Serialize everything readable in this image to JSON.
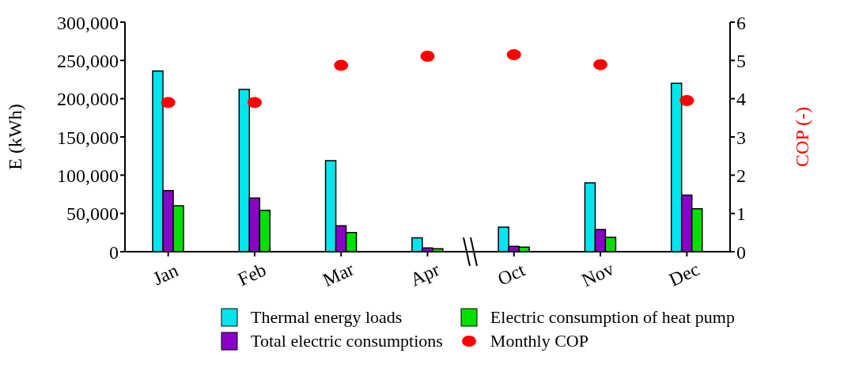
{
  "chart_data": {
    "type": "bar",
    "categories": [
      "Jan",
      "Feb",
      "Mar",
      "Apr",
      "Oct",
      "Nov",
      "Dec"
    ],
    "series": [
      {
        "name": "Thermal energy loads",
        "color": "#00e5ee",
        "values": [
          236000,
          212000,
          119000,
          18000,
          32000,
          90000,
          220000
        ]
      },
      {
        "name": "Total electric consumptions",
        "color": "#8a00c8",
        "values": [
          80000,
          70000,
          34000,
          5000,
          7000,
          29000,
          74000
        ]
      },
      {
        "name": "Electric consumption of heat pump",
        "color": "#00e000",
        "values": [
          60000,
          54000,
          25000,
          4000,
          6000,
          19000,
          56000
        ]
      },
      {
        "name": "Monthly COP",
        "type": "scatter",
        "axis": "y2",
        "color": "#ff0000",
        "marker": "circle",
        "values": [
          3.9,
          3.9,
          4.87,
          5.11,
          5.15,
          4.89,
          3.95
        ]
      }
    ],
    "ylabel": "E (kWh)",
    "y2label": "COP (-)",
    "ylim": [
      0,
      300000
    ],
    "yticks": [
      {
        "value": 0,
        "label": "0"
      },
      {
        "value": 50000,
        "label": "50,000"
      },
      {
        "value": 100000,
        "label": "100,000"
      },
      {
        "value": 150000,
        "label": "150,000"
      },
      {
        "value": 200000,
        "label": "200,000"
      },
      {
        "value": 250000,
        "label": "250,000"
      },
      {
        "value": 300000,
        "label": "300,000"
      }
    ],
    "y2lim": [
      0,
      6
    ],
    "y2ticks": [
      0,
      1,
      2,
      3,
      4,
      5,
      6
    ],
    "legend": "bottom",
    "grid": false
  }
}
